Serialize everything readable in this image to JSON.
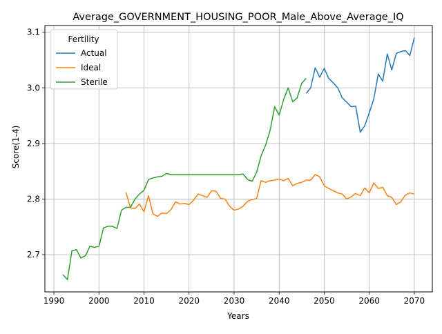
{
  "chart_data": {
    "type": "line",
    "title": "Average_GOVERNMENT_HOUSING_POOR_Male_Above_Average_IQ",
    "xlabel": "Years",
    "ylabel": "Score(1-4)",
    "xlim": [
      1988,
      2074
    ],
    "ylim": [
      2.633,
      3.112
    ],
    "xticks": [
      1990,
      2000,
      2010,
      2020,
      2030,
      2040,
      2050,
      2060,
      2070
    ],
    "yticks": [
      2.7,
      2.8,
      2.9,
      3.0,
      3.1
    ],
    "ytick_labels": [
      "2.7",
      "2.8",
      "2.9",
      "3.0",
      "3.1"
    ],
    "grid": true,
    "legend": {
      "title": "Fertility",
      "placement": "upper-left"
    },
    "series": [
      {
        "name": "Actual",
        "color": "#1f77b4",
        "x": [
          2046,
          2047,
          2048,
          2049,
          2050,
          2051,
          2052,
          2053,
          2054,
          2055,
          2056,
          2057,
          2058,
          2059,
          2060,
          2061,
          2062,
          2063,
          2064,
          2065,
          2066,
          2067,
          2068,
          2069,
          2070
        ],
        "y": [
          2.99,
          3.0,
          3.036,
          3.019,
          3.035,
          3.017,
          3.009,
          3.0,
          2.982,
          2.974,
          2.966,
          2.967,
          2.92,
          2.932,
          2.955,
          2.98,
          3.025,
          3.012,
          3.061,
          3.032,
          3.062,
          3.065,
          3.067,
          3.058,
          3.09
        ]
      },
      {
        "name": "Ideal",
        "color": "#ff7f0e",
        "x": [
          2006,
          2007,
          2008,
          2009,
          2010,
          2011,
          2012,
          2013,
          2014,
          2015,
          2016,
          2017,
          2018,
          2019,
          2020,
          2021,
          2022,
          2023,
          2024,
          2025,
          2026,
          2027,
          2028,
          2029,
          2030,
          2031,
          2032,
          2033,
          2034,
          2035,
          2036,
          2037,
          2038,
          2039,
          2040,
          2041,
          2042,
          2043,
          2044,
          2045,
          2046,
          2047,
          2048,
          2049,
          2050,
          2051,
          2052,
          2053,
          2054,
          2055,
          2056,
          2057,
          2058,
          2059,
          2060,
          2061,
          2062,
          2063,
          2064,
          2065,
          2066,
          2067,
          2068,
          2069,
          2070
        ],
        "y": [
          2.812,
          2.784,
          2.783,
          2.791,
          2.777,
          2.806,
          2.773,
          2.769,
          2.775,
          2.774,
          2.781,
          2.795,
          2.791,
          2.792,
          2.79,
          2.798,
          2.809,
          2.806,
          2.803,
          2.815,
          2.814,
          2.801,
          2.8,
          2.787,
          2.78,
          2.782,
          2.787,
          2.796,
          2.799,
          2.801,
          2.833,
          2.83,
          2.833,
          2.834,
          2.836,
          2.833,
          2.837,
          2.824,
          2.828,
          2.83,
          2.834,
          2.834,
          2.844,
          2.84,
          2.824,
          2.819,
          2.815,
          2.811,
          2.809,
          2.8,
          2.804,
          2.81,
          2.806,
          2.82,
          2.811,
          2.829,
          2.819,
          2.821,
          2.806,
          2.803,
          2.79,
          2.795,
          2.807,
          2.811,
          2.809
        ]
      },
      {
        "name": "Sterile",
        "color": "#2ca02c",
        "x": [
          1992,
          1993,
          1994,
          1995,
          1996,
          1997,
          1998,
          1999,
          2000,
          2001,
          2002,
          2003,
          2004,
          2005,
          2006,
          2007,
          2008,
          2009,
          2010,
          2011,
          2012,
          2013,
          2014,
          2015,
          2016,
          2017,
          2018,
          2019,
          2020,
          2021,
          2022,
          2023,
          2024,
          2025,
          2026,
          2027,
          2028,
          2029,
          2030,
          2031,
          2032,
          2033,
          2034,
          2035,
          2036,
          2037,
          2038,
          2039,
          2040,
          2041,
          2042,
          2043,
          2044,
          2045,
          2046
        ],
        "y": [
          2.664,
          2.655,
          2.707,
          2.709,
          2.694,
          2.698,
          2.715,
          2.713,
          2.715,
          2.748,
          2.751,
          2.751,
          2.747,
          2.78,
          2.785,
          2.785,
          2.8,
          2.809,
          2.816,
          2.835,
          2.838,
          2.84,
          2.841,
          2.846,
          2.844,
          2.844,
          2.844,
          2.844,
          2.844,
          2.844,
          2.844,
          2.844,
          2.844,
          2.844,
          2.844,
          2.844,
          2.844,
          2.844,
          2.844,
          2.844,
          2.845,
          2.835,
          2.832,
          2.848,
          2.878,
          2.897,
          2.924,
          2.966,
          2.951,
          2.979,
          3.0,
          2.975,
          2.982,
          3.008,
          3.017
        ]
      }
    ]
  }
}
